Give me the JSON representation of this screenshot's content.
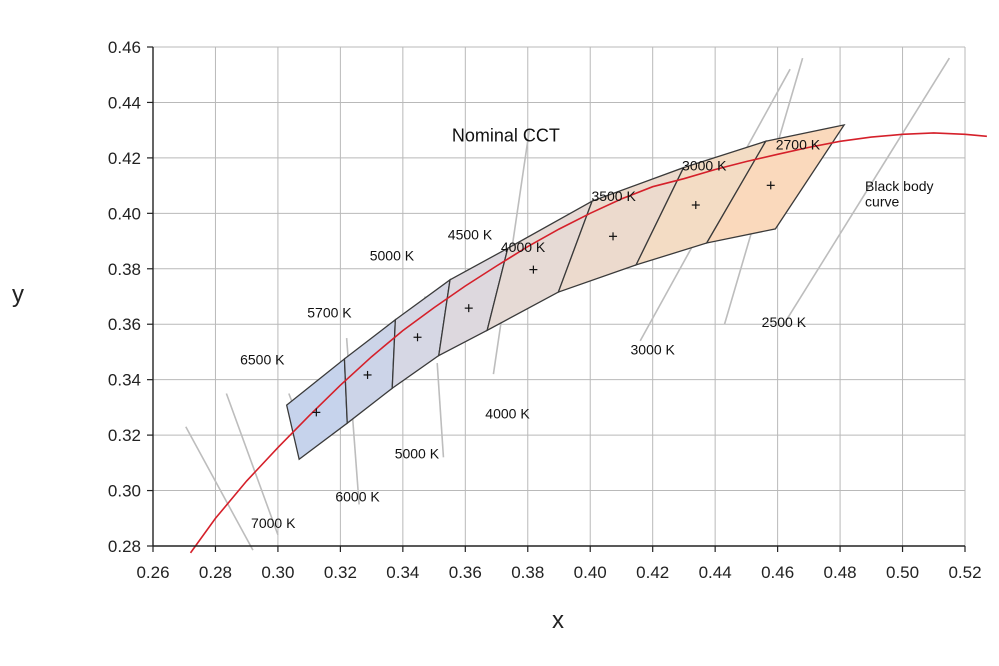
{
  "chart_data": {
    "type": "line",
    "xlabel": "x",
    "ylabel": "y",
    "xlim": [
      0.26,
      0.52
    ],
    "ylim": [
      0.28,
      0.46
    ],
    "x_ticks": [
      "0.26",
      "0.28",
      "0.30",
      "0.32",
      "0.34",
      "0.36",
      "0.38",
      "0.40",
      "0.42",
      "0.44",
      "0.46",
      "0.48",
      "0.50",
      "0.52"
    ],
    "y_ticks": [
      "0.28",
      "0.30",
      "0.32",
      "0.34",
      "0.36",
      "0.38",
      "0.40",
      "0.42",
      "0.44",
      "0.46"
    ],
    "grid": true,
    "annotations": [
      {
        "text": "Nominal CCT",
        "x": 0.373,
        "y": 0.426
      },
      {
        "text": "Black body",
        "x": 0.488,
        "y": 0.408
      },
      {
        "text": "curve",
        "x": 0.488,
        "y": 0.4025
      }
    ],
    "blackbody_curve": {
      "name": "Black body curve",
      "color": "#d5202a",
      "points": [
        [
          0.272,
          0.2775
        ],
        [
          0.28,
          0.29
        ],
        [
          0.29,
          0.3035
        ],
        [
          0.3,
          0.3155
        ],
        [
          0.31,
          0.327
        ],
        [
          0.32,
          0.338
        ],
        [
          0.33,
          0.3483
        ],
        [
          0.34,
          0.3577
        ],
        [
          0.35,
          0.366
        ],
        [
          0.36,
          0.3738
        ],
        [
          0.37,
          0.381
        ],
        [
          0.38,
          0.388
        ],
        [
          0.39,
          0.3943
        ],
        [
          0.4,
          0.4
        ],
        [
          0.41,
          0.4052
        ],
        [
          0.42,
          0.4096
        ],
        [
          0.43,
          0.4125
        ],
        [
          0.44,
          0.4158
        ],
        [
          0.45,
          0.4187
        ],
        [
          0.46,
          0.4213
        ],
        [
          0.47,
          0.4238
        ],
        [
          0.48,
          0.426
        ],
        [
          0.49,
          0.4275
        ],
        [
          0.5,
          0.4285
        ],
        [
          0.51,
          0.429
        ],
        [
          0.52,
          0.4285
        ],
        [
          0.527,
          0.4278
        ]
      ]
    },
    "quadrangles": [
      {
        "label": "6500 K",
        "corners": [
          [
            0.3028,
            0.3308
          ],
          [
            0.3213,
            0.3475
          ],
          [
            0.3222,
            0.3243
          ],
          [
            0.3068,
            0.3113
          ]
        ],
        "center": [
          0.3123,
          0.3282
        ],
        "color": "#c6d3ec",
        "label_pos": [
          0.295,
          0.3455
        ]
      },
      {
        "label": "5700 K",
        "corners": [
          [
            0.3213,
            0.3475
          ],
          [
            0.3376,
            0.3616
          ],
          [
            0.3366,
            0.3369
          ],
          [
            0.3222,
            0.3243
          ]
        ],
        "center": [
          0.3287,
          0.3417
        ],
        "color": "#ccd4e8",
        "label_pos": [
          0.3165,
          0.3625
        ]
      },
      {
        "label": "5000 K",
        "corners": [
          [
            0.3376,
            0.3616
          ],
          [
            0.3551,
            0.376
          ],
          [
            0.3515,
            0.3487
          ],
          [
            0.3366,
            0.3369
          ]
        ],
        "center": [
          0.3447,
          0.3553
        ],
        "color": "#d6d7e4",
        "label_pos": [
          0.3365,
          0.383
        ]
      },
      {
        "label": "4500 K",
        "corners": [
          [
            0.3551,
            0.376
          ],
          [
            0.3736,
            0.3874
          ],
          [
            0.367,
            0.3578
          ],
          [
            0.3515,
            0.3487
          ]
        ],
        "center": [
          0.3611,
          0.3658
        ],
        "color": "#ddd8de",
        "label_pos": [
          0.3615,
          0.3905
        ]
      },
      {
        "label": "4000 K",
        "corners": [
          [
            0.3736,
            0.3874
          ],
          [
            0.4006,
            0.4044
          ],
          [
            0.3898,
            0.3716
          ],
          [
            0.367,
            0.3578
          ]
        ],
        "center": [
          0.3818,
          0.3797
        ],
        "color": "#e6dad5",
        "label_pos": [
          0.3785,
          0.386
        ]
      },
      {
        "label": "3500 K",
        "corners": [
          [
            0.4006,
            0.4044
          ],
          [
            0.4299,
            0.4165
          ],
          [
            0.4147,
            0.3814
          ],
          [
            0.3898,
            0.3716
          ]
        ],
        "center": [
          0.4073,
          0.3917
        ],
        "color": "#ecdacd",
        "label_pos": [
          0.4075,
          0.4045
        ]
      },
      {
        "label": "3000 K",
        "corners": [
          [
            0.4299,
            0.4165
          ],
          [
            0.4562,
            0.426
          ],
          [
            0.4373,
            0.3893
          ],
          [
            0.4147,
            0.3814
          ]
        ],
        "center": [
          0.4338,
          0.403
        ],
        "color": "#f3dcc4",
        "label_pos": [
          0.4365,
          0.4155
        ]
      },
      {
        "label": "2700 K",
        "corners": [
          [
            0.4562,
            0.426
          ],
          [
            0.4813,
            0.4319
          ],
          [
            0.4593,
            0.3944
          ],
          [
            0.4373,
            0.3893
          ]
        ],
        "center": [
          0.4578,
          0.4101
        ],
        "color": "#fad9bc",
        "label_pos": [
          0.4665,
          0.423
        ]
      }
    ],
    "isotemperature_lines": [
      {
        "label": "7000 K",
        "from": [
          0.2705,
          0.323
        ],
        "to": [
          0.292,
          0.2785
        ],
        "label_pos": [
          0.2985,
          0.2865
        ]
      },
      {
        "label": "6000 K",
        "from": [
          0.2835,
          0.335
        ],
        "to": [
          0.3,
          0.284
        ],
        "label_pos": [
          0.3255,
          0.296
        ]
      },
      {
        "label": "6500 K",
        "from": [
          0.3035,
          0.335
        ],
        "to": [
          0.3045,
          0.332
        ]
      },
      {
        "label": "5700 K",
        "from": [
          0.322,
          0.355
        ],
        "to": [
          0.326,
          0.295
        ]
      },
      {
        "label": "5000 K",
        "from": [
          0.347,
          0.37
        ],
        "to": [
          0.35,
          0.36
        ],
        "label_pos": [
          0.3445,
          0.3115
        ]
      },
      {
        "label": "5000 K",
        "from": [
          0.351,
          0.346
        ],
        "to": [
          0.353,
          0.312
        ]
      },
      {
        "label": "4000 K",
        "from": [
          0.3805,
          0.43
        ],
        "to": [
          0.369,
          0.342
        ],
        "label_pos": [
          0.3735,
          0.326
        ]
      },
      {
        "label": "3000 K",
        "from": [
          0.464,
          0.452
        ],
        "to": [
          0.416,
          0.354
        ],
        "label_pos": [
          0.42,
          0.349
        ]
      },
      {
        "label": "2500 K",
        "from": [
          0.468,
          0.456
        ],
        "to": [
          0.443,
          0.36
        ],
        "label_pos": [
          0.462,
          0.359
        ]
      },
      {
        "label": "2500 K",
        "from": [
          0.515,
          0.456
        ],
        "to": [
          0.462,
          0.36
        ]
      }
    ]
  }
}
